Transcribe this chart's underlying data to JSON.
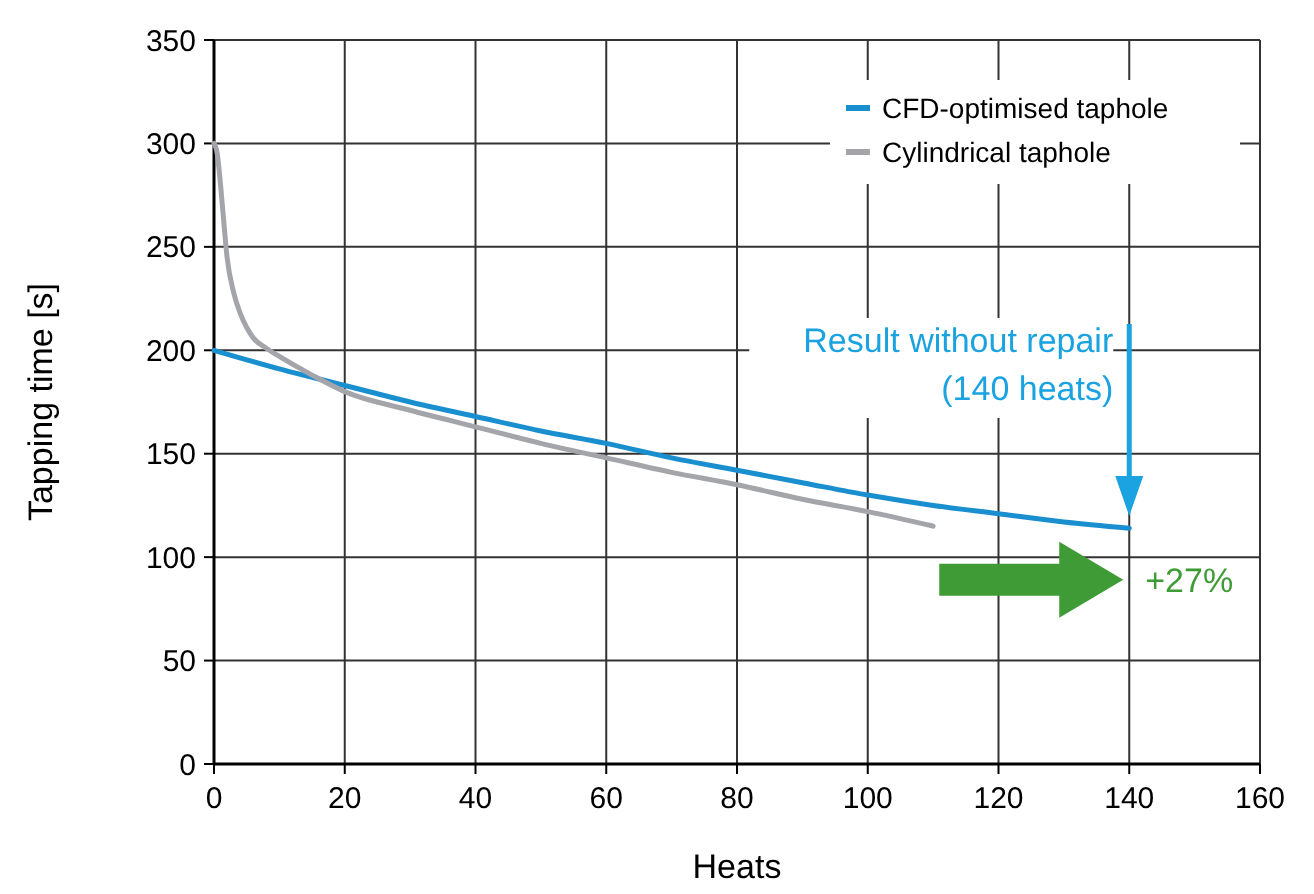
{
  "chart_data": {
    "type": "line",
    "xlabel": "Heats",
    "ylabel": "Tapping time [s]",
    "xlim": [
      0,
      160
    ],
    "xticks": [
      0,
      20,
      40,
      60,
      80,
      100,
      120,
      140,
      160
    ],
    "ylim": [
      0,
      350
    ],
    "yticks": [
      0,
      50,
      100,
      150,
      200,
      250,
      300,
      350
    ],
    "grid": true,
    "legend": "top right",
    "marker": "none",
    "line_style": "solid",
    "series": [
      {
        "name": "CFD-optimised taphole",
        "color": "#1a8fd0",
        "x": [
          0,
          10,
          20,
          30,
          40,
          50,
          60,
          70,
          80,
          90,
          100,
          110,
          120,
          130,
          140
        ],
        "values": [
          200,
          191,
          183,
          175,
          168,
          161,
          155,
          148,
          142,
          136,
          130,
          125,
          121,
          117,
          114
        ]
      },
      {
        "name": "Cylindrical taphole",
        "color": "#a3a5ab",
        "x": [
          0,
          0.5,
          1,
          1.5,
          2,
          3,
          4,
          5,
          6,
          8,
          10,
          15,
          20,
          30,
          40,
          50,
          60,
          70,
          80,
          90,
          100,
          110
        ],
        "values": [
          300,
          295,
          280,
          262,
          245,
          228,
          218,
          211,
          206,
          201,
          197,
          188,
          180,
          171,
          163,
          155,
          148,
          141,
          135,
          128,
          122,
          115
        ]
      }
    ],
    "annotations": [
      "Result without repair\n(140 heats)",
      "+27%"
    ]
  }
}
